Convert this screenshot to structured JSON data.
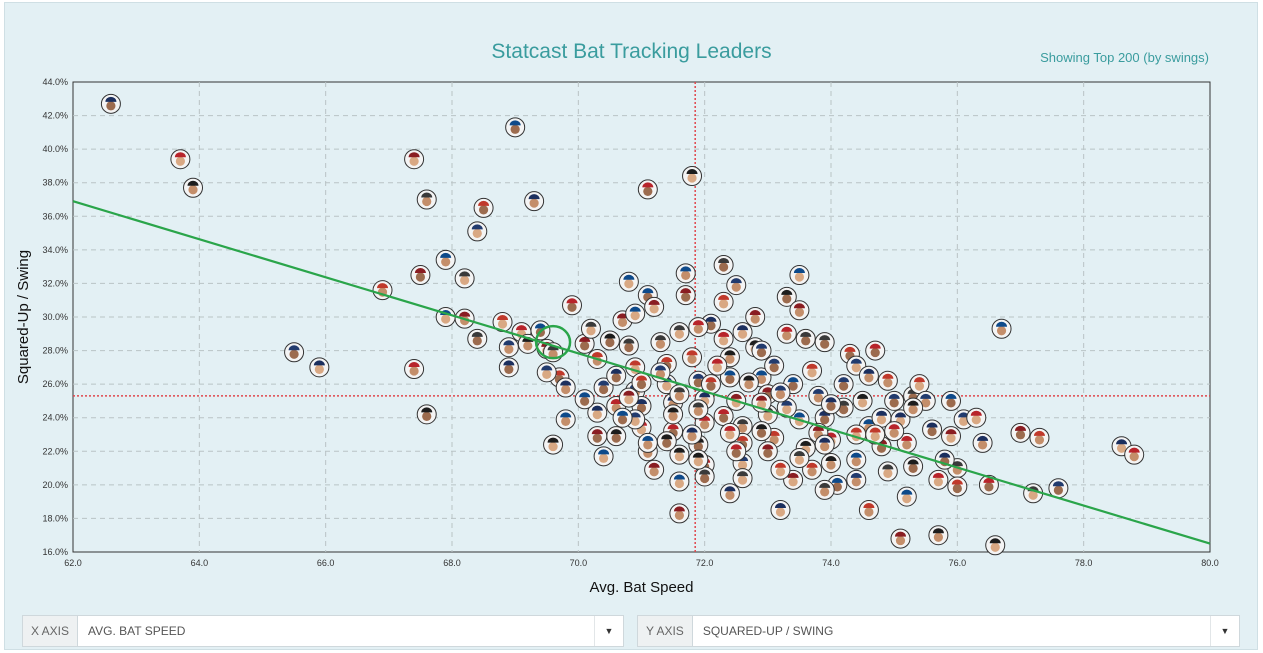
{
  "header": {
    "title": "Statcast Bat Tracking Leaders",
    "subtitle": "Showing Top 200 (by swings)"
  },
  "controls": {
    "x_axis": {
      "tag": "X AXIS",
      "value": "AVG. BAT SPEED"
    },
    "y_axis": {
      "tag": "Y AXIS",
      "value": "SQUARED-UP / SWING"
    }
  },
  "colors": {
    "panel": "#e3f0f4",
    "title": "#3a9c9e",
    "trend": "#2aa54a",
    "reference": "#e0474c",
    "grid": "#b9c3c5"
  },
  "chart_data": {
    "type": "scatter",
    "title": "Statcast Bat Tracking Leaders",
    "xlabel": "Avg. Bat Speed",
    "ylabel": "Squared-Up / Swing",
    "xlim": [
      62,
      80
    ],
    "ylim": [
      16,
      44
    ],
    "x_ticks": [
      "62.0",
      "64.0",
      "66.0",
      "68.0",
      "70.0",
      "72.0",
      "74.0",
      "76.0",
      "78.0",
      "80.0"
    ],
    "y_ticks": [
      "16.0%",
      "18.0%",
      "20.0%",
      "22.0%",
      "24.0%",
      "26.0%",
      "28.0%",
      "30.0%",
      "32.0%",
      "34.0%",
      "36.0%",
      "38.0%",
      "40.0%",
      "42.0%",
      "44.0%"
    ],
    "grid": true,
    "reference_lines": {
      "x_avg": 71.85,
      "y_avg": 25.3
    },
    "trend_line": {
      "x": [
        62,
        80
      ],
      "y": [
        36.9,
        16.5
      ]
    },
    "highlight": {
      "x": 69.6,
      "y": 28.5
    },
    "points": [
      [
        62.6,
        42.7
      ],
      [
        63.7,
        39.4
      ],
      [
        63.9,
        37.7
      ],
      [
        69.0,
        41.3
      ],
      [
        67.4,
        39.4
      ],
      [
        67.6,
        37.0
      ],
      [
        68.5,
        36.5
      ],
      [
        68.4,
        35.1
      ],
      [
        69.3,
        36.9
      ],
      [
        71.1,
        37.6
      ],
      [
        71.8,
        38.4
      ],
      [
        67.9,
        33.4
      ],
      [
        67.5,
        32.5
      ],
      [
        68.2,
        32.3
      ],
      [
        66.9,
        31.6
      ],
      [
        65.5,
        27.9
      ],
      [
        65.9,
        27.0
      ],
      [
        67.4,
        26.9
      ],
      [
        67.6,
        24.2
      ],
      [
        67.9,
        30.0
      ],
      [
        68.2,
        29.9
      ],
      [
        68.4,
        28.7
      ],
      [
        68.8,
        29.7
      ],
      [
        68.9,
        28.2
      ],
      [
        68.9,
        27.0
      ],
      [
        69.1,
        29.1
      ],
      [
        69.2,
        28.4
      ],
      [
        69.4,
        29.2
      ],
      [
        69.5,
        28.1
      ],
      [
        69.6,
        27.9
      ],
      [
        69.7,
        26.4
      ],
      [
        69.5,
        26.7
      ],
      [
        69.8,
        25.8
      ],
      [
        69.9,
        30.7
      ],
      [
        69.6,
        22.4
      ],
      [
        69.8,
        23.9
      ],
      [
        70.1,
        28.4
      ],
      [
        70.2,
        29.3
      ],
      [
        70.3,
        27.5
      ],
      [
        70.4,
        25.8
      ],
      [
        70.3,
        24.3
      ],
      [
        70.6,
        24.7
      ],
      [
        70.6,
        22.9
      ],
      [
        70.8,
        32.1
      ],
      [
        70.7,
        29.8
      ],
      [
        70.8,
        28.3
      ],
      [
        70.9,
        27.0
      ],
      [
        70.9,
        25.6
      ],
      [
        71.0,
        24.7
      ],
      [
        71.0,
        23.4
      ],
      [
        71.1,
        22.0
      ],
      [
        71.1,
        31.3
      ],
      [
        71.2,
        30.6
      ],
      [
        71.3,
        28.5
      ],
      [
        71.4,
        27.2
      ],
      [
        71.4,
        26.0
      ],
      [
        71.5,
        24.9
      ],
      [
        71.5,
        23.2
      ],
      [
        71.6,
        21.8
      ],
      [
        71.7,
        32.6
      ],
      [
        71.7,
        31.3
      ],
      [
        71.6,
        29.1
      ],
      [
        71.8,
        27.6
      ],
      [
        71.9,
        26.2
      ],
      [
        72.0,
        25.1
      ],
      [
        72.0,
        23.7
      ],
      [
        71.9,
        22.4
      ],
      [
        71.6,
        20.2
      ],
      [
        71.6,
        18.3
      ],
      [
        72.3,
        33.1
      ],
      [
        72.3,
        30.9
      ],
      [
        72.5,
        31.9
      ],
      [
        72.1,
        29.6
      ],
      [
        72.3,
        28.7
      ],
      [
        72.4,
        27.6
      ],
      [
        72.4,
        26.4
      ],
      [
        72.5,
        25.0
      ],
      [
        72.6,
        23.5
      ],
      [
        72.6,
        22.5
      ],
      [
        72.6,
        21.3
      ],
      [
        72.4,
        19.5
      ],
      [
        72.0,
        21.2
      ],
      [
        72.8,
        28.2
      ],
      [
        72.9,
        26.4
      ],
      [
        73.0,
        25.4
      ],
      [
        73.0,
        24.2
      ],
      [
        73.1,
        22.8
      ],
      [
        73.1,
        27.1
      ],
      [
        73.2,
        18.5
      ],
      [
        73.3,
        29.0
      ],
      [
        73.3,
        31.2
      ],
      [
        73.5,
        32.5
      ],
      [
        73.5,
        30.4
      ],
      [
        73.6,
        28.7
      ],
      [
        73.7,
        26.8
      ],
      [
        73.8,
        25.3
      ],
      [
        73.9,
        24.0
      ],
      [
        74.0,
        22.7
      ],
      [
        74.0,
        21.3
      ],
      [
        74.1,
        20.0
      ],
      [
        73.4,
        20.3
      ],
      [
        73.9,
        19.7
      ],
      [
        74.3,
        27.8
      ],
      [
        74.4,
        27.1
      ],
      [
        74.6,
        26.5
      ],
      [
        74.7,
        28.0
      ],
      [
        74.5,
        25.0
      ],
      [
        74.6,
        23.5
      ],
      [
        74.8,
        22.3
      ],
      [
        74.9,
        20.8
      ],
      [
        74.6,
        18.5
      ],
      [
        75.0,
        25.0
      ],
      [
        75.1,
        23.9
      ],
      [
        75.2,
        22.5
      ],
      [
        75.3,
        21.1
      ],
      [
        75.2,
        19.3
      ],
      [
        75.1,
        16.8
      ],
      [
        75.3,
        25.3
      ],
      [
        75.4,
        26.0
      ],
      [
        75.5,
        25.0
      ],
      [
        75.6,
        23.3
      ],
      [
        75.7,
        20.3
      ],
      [
        75.7,
        17.0
      ],
      [
        75.9,
        25.0
      ],
      [
        75.9,
        22.9
      ],
      [
        76.0,
        21.0
      ],
      [
        76.0,
        19.9
      ],
      [
        76.1,
        23.9
      ],
      [
        76.4,
        22.5
      ],
      [
        76.5,
        20.0
      ],
      [
        76.6,
        16.4
      ],
      [
        76.7,
        29.3
      ],
      [
        77.0,
        23.1
      ],
      [
        77.2,
        19.5
      ],
      [
        77.3,
        22.8
      ],
      [
        77.6,
        19.8
      ],
      [
        78.6,
        22.3
      ],
      [
        78.8,
        21.8
      ],
      [
        72.9,
        23.2
      ],
      [
        73.5,
        23.9
      ],
      [
        73.8,
        23.1
      ],
      [
        74.2,
        24.6
      ],
      [
        74.4,
        23.0
      ],
      [
        71.3,
        26.7
      ],
      [
        70.6,
        26.5
      ],
      [
        72.2,
        27.1
      ],
      [
        72.7,
        26.1
      ],
      [
        73.4,
        26.0
      ],
      [
        72.9,
        24.9
      ],
      [
        71.9,
        24.5
      ],
      [
        71.0,
        26.1
      ],
      [
        70.9,
        23.9
      ],
      [
        71.8,
        23.0
      ],
      [
        72.3,
        24.1
      ],
      [
        73.6,
        22.2
      ],
      [
        74.4,
        21.5
      ],
      [
        73.0,
        22.0
      ],
      [
        72.6,
        20.4
      ],
      [
        73.7,
        20.9
      ],
      [
        74.2,
        26.0
      ],
      [
        74.8,
        24.0
      ],
      [
        75.0,
        23.2
      ],
      [
        71.4,
        22.6
      ],
      [
        70.4,
        21.7
      ],
      [
        71.2,
        20.9
      ],
      [
        72.0,
        20.5
      ],
      [
        73.2,
        20.9
      ],
      [
        74.4,
        20.3
      ],
      [
        75.8,
        21.5
      ],
      [
        76.3,
        24.0
      ],
      [
        75.3,
        24.6
      ],
      [
        70.1,
        25.1
      ],
      [
        70.8,
        25.2
      ],
      [
        71.6,
        25.4
      ],
      [
        72.1,
        26.0
      ],
      [
        73.3,
        24.6
      ],
      [
        73.9,
        22.4
      ],
      [
        72.5,
        22.0
      ],
      [
        71.9,
        21.5
      ],
      [
        71.1,
        22.5
      ],
      [
        70.3,
        22.9
      ],
      [
        73.5,
        21.6
      ],
      [
        74.9,
        26.2
      ],
      [
        72.9,
        28.0
      ],
      [
        72.6,
        29.1
      ],
      [
        71.9,
        29.4
      ],
      [
        70.5,
        28.6
      ],
      [
        70.9,
        30.2
      ],
      [
        72.8,
        30.0
      ],
      [
        73.9,
        28.5
      ],
      [
        74.7,
        23.0
      ],
      [
        73.2,
        25.5
      ],
      [
        74.0,
        24.8
      ],
      [
        72.4,
        23.1
      ],
      [
        71.5,
        24.2
      ],
      [
        70.7,
        24.0
      ]
    ]
  }
}
